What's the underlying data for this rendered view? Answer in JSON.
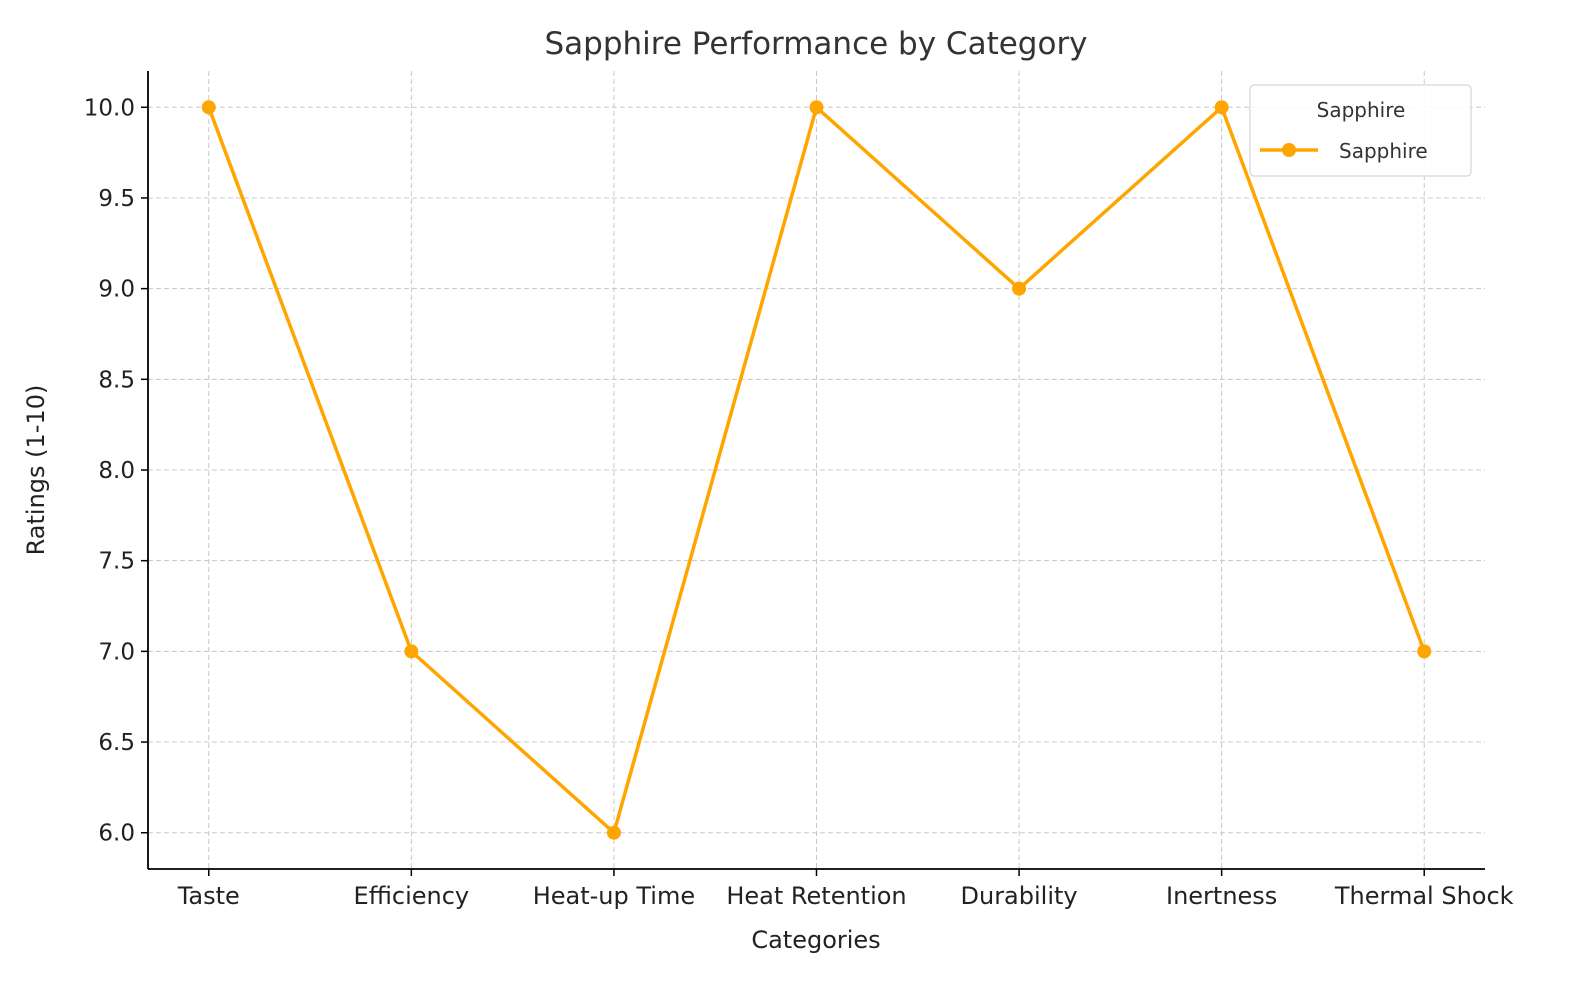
{
  "chart_data": {
    "type": "line",
    "title": "Sapphire Performance by Category",
    "xlabel": "Categories",
    "ylabel": "Ratings (1-10)",
    "categories": [
      "Taste",
      "Efficiency",
      "Heat-up Time",
      "Heat Retention",
      "Durability",
      "Inertness",
      "Thermal Shock"
    ],
    "series": [
      {
        "name": "Sapphire",
        "values": [
          10,
          7,
          6,
          10,
          9,
          10,
          7
        ],
        "color": "#FFA500",
        "marker": "circle"
      }
    ],
    "ylim": [
      5.8,
      10.2
    ],
    "yticks": [
      "6.0",
      "6.5",
      "7.0",
      "7.5",
      "8.0",
      "8.5",
      "9.0",
      "9.5",
      "10.0"
    ],
    "grid": true,
    "legend": {
      "title": "Sapphire",
      "placement": "top-right"
    }
  }
}
